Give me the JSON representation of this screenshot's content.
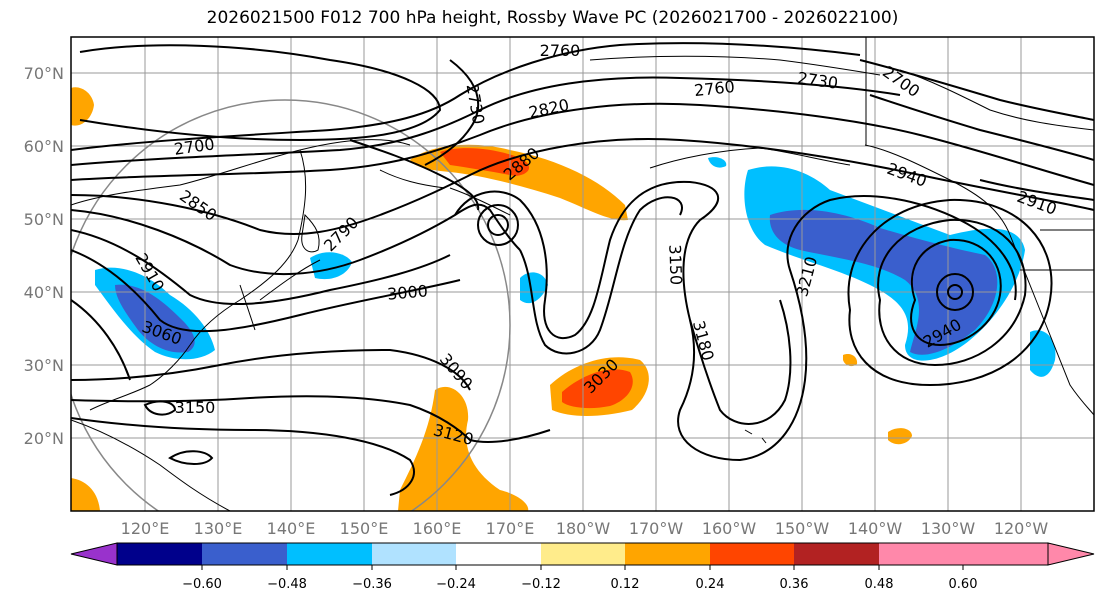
{
  "title": "2026021500 F012 700 hPa height, Rossby Wave PC (2026021700 - 2026022100)",
  "lat_labels": [
    "70°N",
    "60°N",
    "50°N",
    "40°N",
    "30°N",
    "20°N"
  ],
  "lon_labels": [
    "120°E",
    "130°E",
    "140°E",
    "150°E",
    "160°E",
    "170°E",
    "180°W",
    "170°W",
    "160°W",
    "150°W",
    "140°W",
    "130°W",
    "120°W"
  ],
  "colorbar": {
    "colors": [
      "#9932CC",
      "#00008B",
      "#3A5FCD",
      "#00BFFF",
      "#B0E2FF",
      "#FFFFFF",
      "#FFEC8B",
      "#FFA500",
      "#FF4500",
      "#B22222",
      "#FF88AA"
    ],
    "ticks": [
      "−0.60",
      "−0.48",
      "−0.36",
      "−0.24",
      "−0.12",
      "0.12",
      "0.24",
      "0.36",
      "0.48",
      "0.60"
    ]
  },
  "contour_labels": [
    "2760",
    "2730",
    "2820",
    "2760",
    "2730",
    "2700",
    "2700",
    "2850",
    "2880",
    "2790",
    "2940",
    "2910",
    "2910",
    "3000",
    "3060",
    "3150",
    "3180",
    "3210",
    "2940",
    "3090",
    "3030",
    "3120",
    "3150"
  ]
}
